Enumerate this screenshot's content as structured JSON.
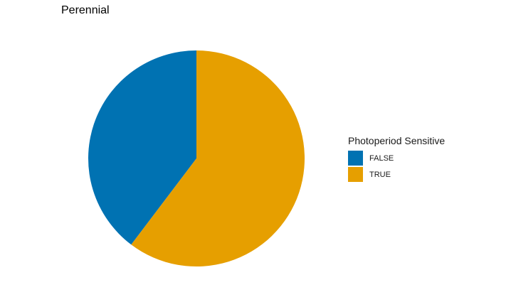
{
  "chart_data": {
    "type": "pie",
    "title": "Perennial",
    "legend_title": "Photoperiod Sensitive",
    "legend_position": "right",
    "categories": [
      "FALSE",
      "TRUE"
    ],
    "values": [
      0.397,
      0.603
    ],
    "colors": [
      "#0072B2",
      "#E69F00"
    ],
    "start": "top",
    "direction": "counterclockwise"
  }
}
